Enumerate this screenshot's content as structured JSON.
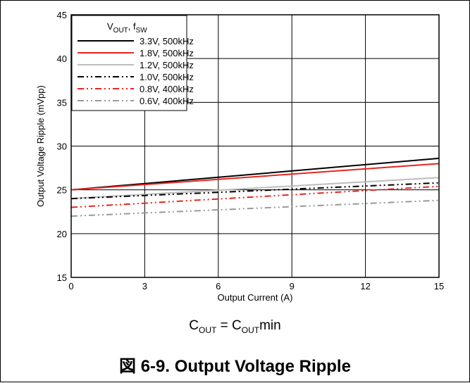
{
  "chart_data": {
    "type": "line",
    "xlabel": "Output Current (A)",
    "ylabel": "Output Voltage Ripple (mVpp)",
    "xlim": [
      0,
      15
    ],
    "ylim": [
      15,
      45
    ],
    "xticks": [
      0,
      3,
      6,
      9,
      12,
      15
    ],
    "yticks": [
      15,
      20,
      25,
      30,
      35,
      40,
      45
    ],
    "grid": true,
    "legend_position": "top-left",
    "legend_title": {
      "main": "V",
      "main_sub": "OUT",
      "sep": ", f",
      "sec_sub": "SW"
    },
    "series": [
      {
        "name": "3.3V, 500kHz",
        "color": "#000000",
        "dash": "solid",
        "x": [
          0,
          15
        ],
        "y": [
          25.0,
          28.6
        ]
      },
      {
        "name": "1.8V, 500kHz",
        "color": "#e8251f",
        "dash": "solid",
        "x": [
          0,
          15
        ],
        "y": [
          25.0,
          28.0
        ]
      },
      {
        "name": "1.2V, 500kHz",
        "color": "#bdbdbd",
        "dash": "solid",
        "x": [
          0,
          15
        ],
        "y": [
          24.0,
          26.4
        ]
      },
      {
        "name": "1.0V, 500kHz",
        "color": "#000000",
        "dash": "dashdotdot",
        "x": [
          0,
          15
        ],
        "y": [
          24.0,
          25.8
        ]
      },
      {
        "name": "0.8V, 400kHz",
        "color": "#e8251f",
        "dash": "dashdotdot",
        "x": [
          0,
          15
        ],
        "y": [
          23.0,
          25.4
        ]
      },
      {
        "name": "0.6V, 400kHz",
        "color": "#999999",
        "dash": "dashdotdot",
        "x": [
          0,
          15
        ],
        "y": [
          22.0,
          23.8
        ]
      }
    ]
  },
  "subcaption": {
    "c": "C",
    "sub1": "OUT",
    "mid": " = C",
    "sub2": "OUT",
    "end": "min"
  },
  "caption": "図 6-9. Output Voltage Ripple"
}
